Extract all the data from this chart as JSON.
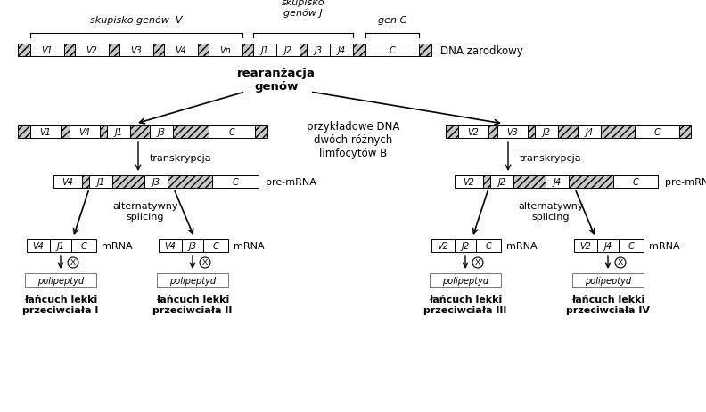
{
  "bg_color": "#ffffff",
  "title_dna": "DNA zarodkowy",
  "label_rearrangement": "rearanżacja\ngenów",
  "label_example": "przykładowe DNA\ndwóch różnych\nlimfocytów B",
  "label_transcription": "transkrypcja",
  "label_splicing": "alternatywny\nsplicing",
  "label_premrna": "pre-mRNA",
  "label_mrna": "mRNA",
  "label_polipeptyd": "polipeptyd",
  "label_skupisko_v": "skupisko genów  V",
  "label_skupisko_j": "skupisko\ngenów J",
  "label_gen_c": "gen C",
  "label_lancuch1": "łańcuch lekki\nprzeciwciała I",
  "label_lancuch2": "łańcuch lekki\nprzeciwciała II",
  "label_lancuch3": "łańcuch lekki\nprzeciwciała III",
  "label_lancuch4": "łańcuch lekki\nprzeciwciała IV"
}
